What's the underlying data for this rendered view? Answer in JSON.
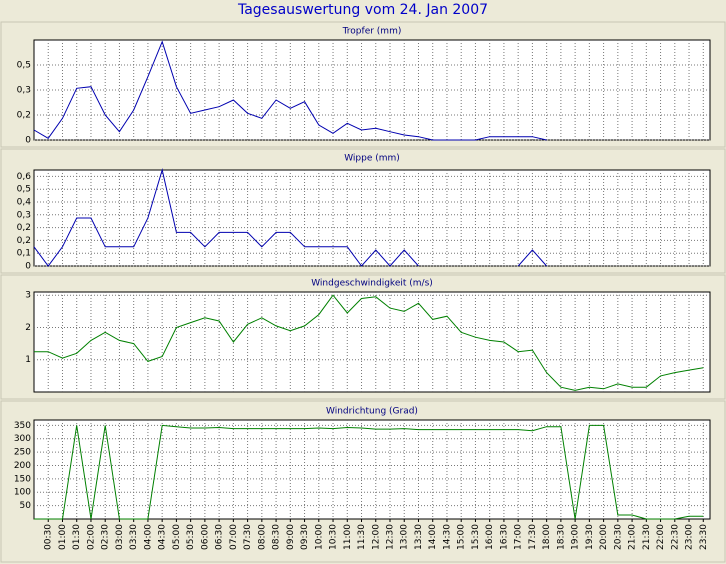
{
  "title": "Tagesauswertung vom 24. Jan 2007",
  "chart_data": [
    {
      "type": "line",
      "title": "Tropfer (mm)",
      "color": "#0000b0",
      "grid": true,
      "ylim": [
        0,
        0.6
      ],
      "yticks": [
        0,
        {
          "value": 0.15,
          "label": "0,2"
        },
        {
          "value": 0.3,
          "label": "0,3"
        },
        {
          "value": 0.45,
          "label": "0,5"
        }
      ],
      "values": [
        0.06,
        0.01,
        0.13,
        0.31,
        0.32,
        0.15,
        0.05,
        0.18,
        0.38,
        0.59,
        0.32,
        0.16,
        0.18,
        0.2,
        0.24,
        0.16,
        0.13,
        0.24,
        0.19,
        0.23,
        0.09,
        0.04,
        0.1,
        0.06,
        0.07,
        0.05,
        0.03,
        0.02,
        0,
        0,
        0,
        0,
        0.02,
        0.02,
        0.02,
        0.02,
        0,
        null,
        null,
        null,
        null,
        null,
        null,
        null,
        null,
        null,
        null,
        null
      ]
    },
    {
      "type": "line",
      "title": "Wippe (mm)",
      "color": "#0000b0",
      "grid": true,
      "ylim": [
        0,
        0.6
      ],
      "yticks": [
        0,
        {
          "value": 0.08,
          "label": "0,1"
        },
        {
          "value": 0.16,
          "label": "0,2"
        },
        {
          "value": 0.24,
          "label": "0,2"
        },
        {
          "value": 0.32,
          "label": "0,3"
        },
        {
          "value": 0.4,
          "label": "0,4"
        },
        {
          "value": 0.48,
          "label": "0,5"
        },
        {
          "value": 0.56,
          "label": "0,6"
        }
      ],
      "values": [
        0.12,
        0,
        0.12,
        0.3,
        0.3,
        0.12,
        0.12,
        0.12,
        0.3,
        0.6,
        0.21,
        0.21,
        0.12,
        0.21,
        0.21,
        0.21,
        0.12,
        0.21,
        0.21,
        0.12,
        0.12,
        0.12,
        0.12,
        0,
        0.1,
        0,
        0.1,
        0,
        null,
        null,
        null,
        null,
        null,
        null,
        0,
        0.1,
        0,
        null,
        null,
        null,
        null,
        null,
        null,
        null,
        null,
        null,
        null,
        null
      ]
    },
    {
      "type": "line",
      "title": "Windgeschwindigkeit (m/s)",
      "color": "#008000",
      "grid": true,
      "ylim": [
        0,
        3.1
      ],
      "yticks": [
        1,
        2,
        3
      ],
      "values": [
        1.25,
        1.25,
        1.05,
        1.2,
        1.6,
        1.85,
        1.6,
        1.5,
        0.95,
        1.1,
        2.0,
        2.15,
        2.3,
        2.2,
        1.55,
        2.1,
        2.3,
        2.05,
        1.9,
        2.05,
        2.4,
        3.0,
        2.45,
        2.9,
        2.95,
        2.6,
        2.5,
        2.75,
        2.25,
        2.35,
        1.85,
        1.7,
        1.6,
        1.55,
        1.25,
        1.3,
        0.6,
        0.15,
        0.05,
        0.15,
        0.1,
        0.25,
        0.15,
        0.15,
        0.5,
        0.6,
        0.68,
        0.75
      ]
    },
    {
      "type": "line",
      "title": "Windrichtung (Grad)",
      "color": "#008000",
      "grid": true,
      "ylim": [
        0,
        370
      ],
      "yticks": [
        50,
        100,
        150,
        200,
        250,
        300,
        350
      ],
      "categories": [
        null,
        "00:30",
        "01:00",
        "01:30",
        "02:00",
        "02:30",
        "03:00",
        "03:30",
        "04:00",
        "04:30",
        "05:00",
        "05:30",
        "06:00",
        "06:30",
        "07:00",
        "07:30",
        "08:00",
        "08:30",
        "09:00",
        "09:30",
        "10:00",
        "10:30",
        "11:00",
        "11:30",
        "12:00",
        "12:30",
        "13:00",
        "13:30",
        "14:00",
        "14:30",
        "15:00",
        "15:30",
        "16:00",
        "16:30",
        "17:00",
        "17:30",
        "18:00",
        "18:30",
        "19:00",
        "19:30",
        "20:00",
        "20:30",
        "21:00",
        "21:30",
        "22:00",
        "22:30",
        "23:00",
        "23:30"
      ],
      "values": [
        0,
        0,
        0,
        350,
        0,
        350,
        0,
        0,
        0,
        350,
        345,
        340,
        340,
        342,
        338,
        338,
        338,
        338,
        338,
        338,
        340,
        338,
        342,
        340,
        336,
        336,
        338,
        334,
        334,
        334,
        334,
        334,
        334,
        334,
        334,
        330,
        345,
        345,
        0,
        350,
        350,
        15,
        15,
        0,
        0,
        0,
        10,
        10
      ]
    }
  ]
}
